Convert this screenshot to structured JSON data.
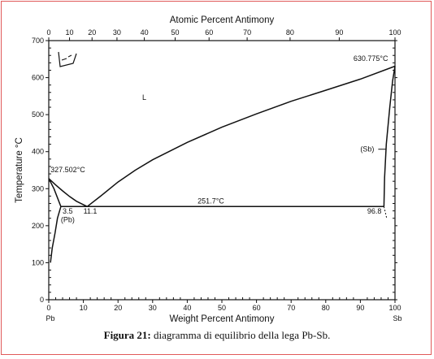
{
  "caption": {
    "label": "Figura 21:",
    "text": "diagramma di equilibrio della lega Pb-Sb."
  },
  "chart_data": {
    "type": "line",
    "xlabel": "Weight Percent Antimony",
    "ylabel": "Temperature °C",
    "top_axis_label": "Atomic Percent Antimony",
    "xlim": [
      0,
      100
    ],
    "ylim": [
      0,
      700
    ],
    "x_ticks": [
      0,
      10,
      20,
      30,
      40,
      50,
      60,
      70,
      80,
      90,
      100
    ],
    "y_ticks": [
      0,
      100,
      200,
      300,
      400,
      500,
      600,
      700
    ],
    "top_ticks": [
      0,
      10,
      20,
      30,
      40,
      50,
      60,
      70,
      80,
      90,
      100
    ],
    "top_tick_positions_wt": [
      0,
      6.0,
      12.5,
      19.7,
      27.6,
      36.5,
      46.3,
      57.3,
      69.7,
      83.9,
      100
    ],
    "x_end_labels": {
      "left": "Pb",
      "right": "Sb"
    },
    "series": [
      {
        "x": [
          0,
          2,
          4,
          6,
          8,
          11.1
        ],
        "y": [
          327.502,
          310,
          294,
          279,
          266,
          251.7
        ]
      },
      {
        "x": [
          11.1,
          15,
          20,
          25,
          30,
          40,
          50,
          60,
          70,
          80,
          90,
          100
        ],
        "y": [
          251.7,
          280,
          318,
          350,
          378,
          425,
          466,
          502,
          536,
          566,
          596,
          630.775
        ]
      },
      {
        "x": [
          3.5,
          96.8
        ],
        "y": [
          251.7,
          251.7
        ]
      },
      {
        "x": [
          0,
          1.5,
          3.5
        ],
        "y": [
          327.502,
          300,
          251.7
        ]
      },
      {
        "x": [
          3.5,
          2.5,
          1.8,
          1.0,
          0.5
        ],
        "y": [
          251.7,
          220,
          180,
          140,
          100
        ]
      },
      {
        "x": [
          96.8,
          97,
          97.5,
          98.5,
          99.3,
          100
        ],
        "y": [
          251.7,
          330,
          420,
          520,
          590,
          630.775
        ]
      }
    ],
    "dashed_series": [
      {
        "x": [
          96.8,
          97.2,
          97.6
        ],
        "y": [
          251.7,
          236,
          220
        ]
      }
    ],
    "annotations": [
      {
        "text": "L",
        "x": 27,
        "y": 540
      },
      {
        "text": "327.502°C",
        "x": 0.5,
        "y": 345
      },
      {
        "text": "630.775°C",
        "x": 88,
        "y": 645
      },
      {
        "text": "251.7°C",
        "x": 43,
        "y": 260
      },
      {
        "text": "3.5",
        "x": 4.0,
        "y": 233
      },
      {
        "text": "(Pb)",
        "x": 3.5,
        "y": 210
      },
      {
        "text": "11.1",
        "x": 10,
        "y": 233
      },
      {
        "text": "96.8",
        "x": 92,
        "y": 233
      },
      {
        "text": "(Sb)",
        "x": 90,
        "y": 400
      }
    ]
  }
}
